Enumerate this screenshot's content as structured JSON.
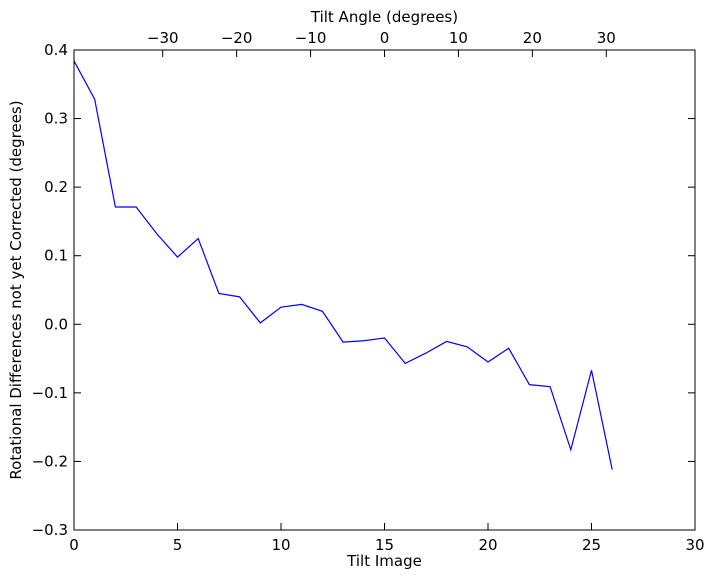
{
  "chart_data": {
    "type": "line",
    "title": "",
    "xlabel": "Tilt Image",
    "ylabel": "Rotational Differences not yet Corrected (degrees)",
    "secondary_xlabel": "Tilt Angle (degrees)",
    "xlim": [
      0,
      30
    ],
    "ylim": [
      -0.3,
      0.4
    ],
    "secondary_xlim": [
      -42,
      42
    ],
    "grid": false,
    "legend": "none",
    "x_ticks": [
      0,
      5,
      10,
      15,
      20,
      25,
      30
    ],
    "x_tick_labels": [
      "0",
      "5",
      "10",
      "15",
      "20",
      "25",
      "30"
    ],
    "y_ticks": [
      -0.3,
      -0.2,
      -0.1,
      0.0,
      0.1,
      0.2,
      0.3,
      0.4
    ],
    "y_tick_labels": [
      "−0.3",
      "−0.2",
      "−0.1",
      "0.0",
      "0.1",
      "0.2",
      "0.3",
      "0.4"
    ],
    "secondary_x_ticks": [
      -30,
      -20,
      -10,
      0,
      10,
      20,
      30
    ],
    "secondary_x_tick_labels": [
      "−30",
      "−20",
      "−10",
      "0",
      "10",
      "20",
      "30"
    ],
    "series": [
      {
        "color": "#0000ff",
        "x": [
          0,
          1,
          2,
          3,
          4,
          5,
          6,
          7,
          8,
          9,
          10,
          11,
          12,
          13,
          14,
          15,
          16,
          17,
          18,
          19,
          20,
          21,
          22,
          23,
          24,
          25,
          26
        ],
        "y": [
          0.384,
          0.328,
          0.171,
          0.171,
          0.132,
          0.098,
          0.125,
          0.045,
          0.04,
          0.002,
          0.025,
          0.029,
          0.019,
          -0.026,
          -0.024,
          -0.02,
          -0.057,
          -0.042,
          -0.025,
          -0.033,
          -0.055,
          -0.035,
          -0.088,
          -0.091,
          -0.183,
          -0.067,
          -0.212
        ]
      }
    ]
  }
}
